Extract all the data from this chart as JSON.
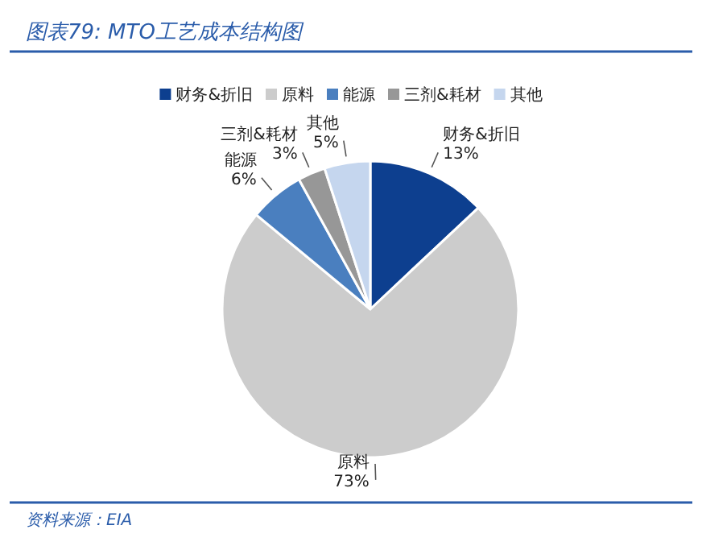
{
  "chart_data": {
    "type": "pie",
    "title": "图表79:  MTO工艺成本结构图",
    "categories": [
      "财务&折旧",
      "原料",
      "能源",
      "三剂&耗材",
      "其他"
    ],
    "values": [
      13,
      73,
      6,
      3,
      5
    ],
    "value_labels": [
      "13%",
      "73%",
      "6%",
      "3%",
      "5%"
    ],
    "colors": [
      "#0d3f8f",
      "#cccccc",
      "#4a7fbf",
      "#979797",
      "#c5d6ee"
    ],
    "legend": "top",
    "annotations": [
      "资料来源：EIA"
    ]
  }
}
